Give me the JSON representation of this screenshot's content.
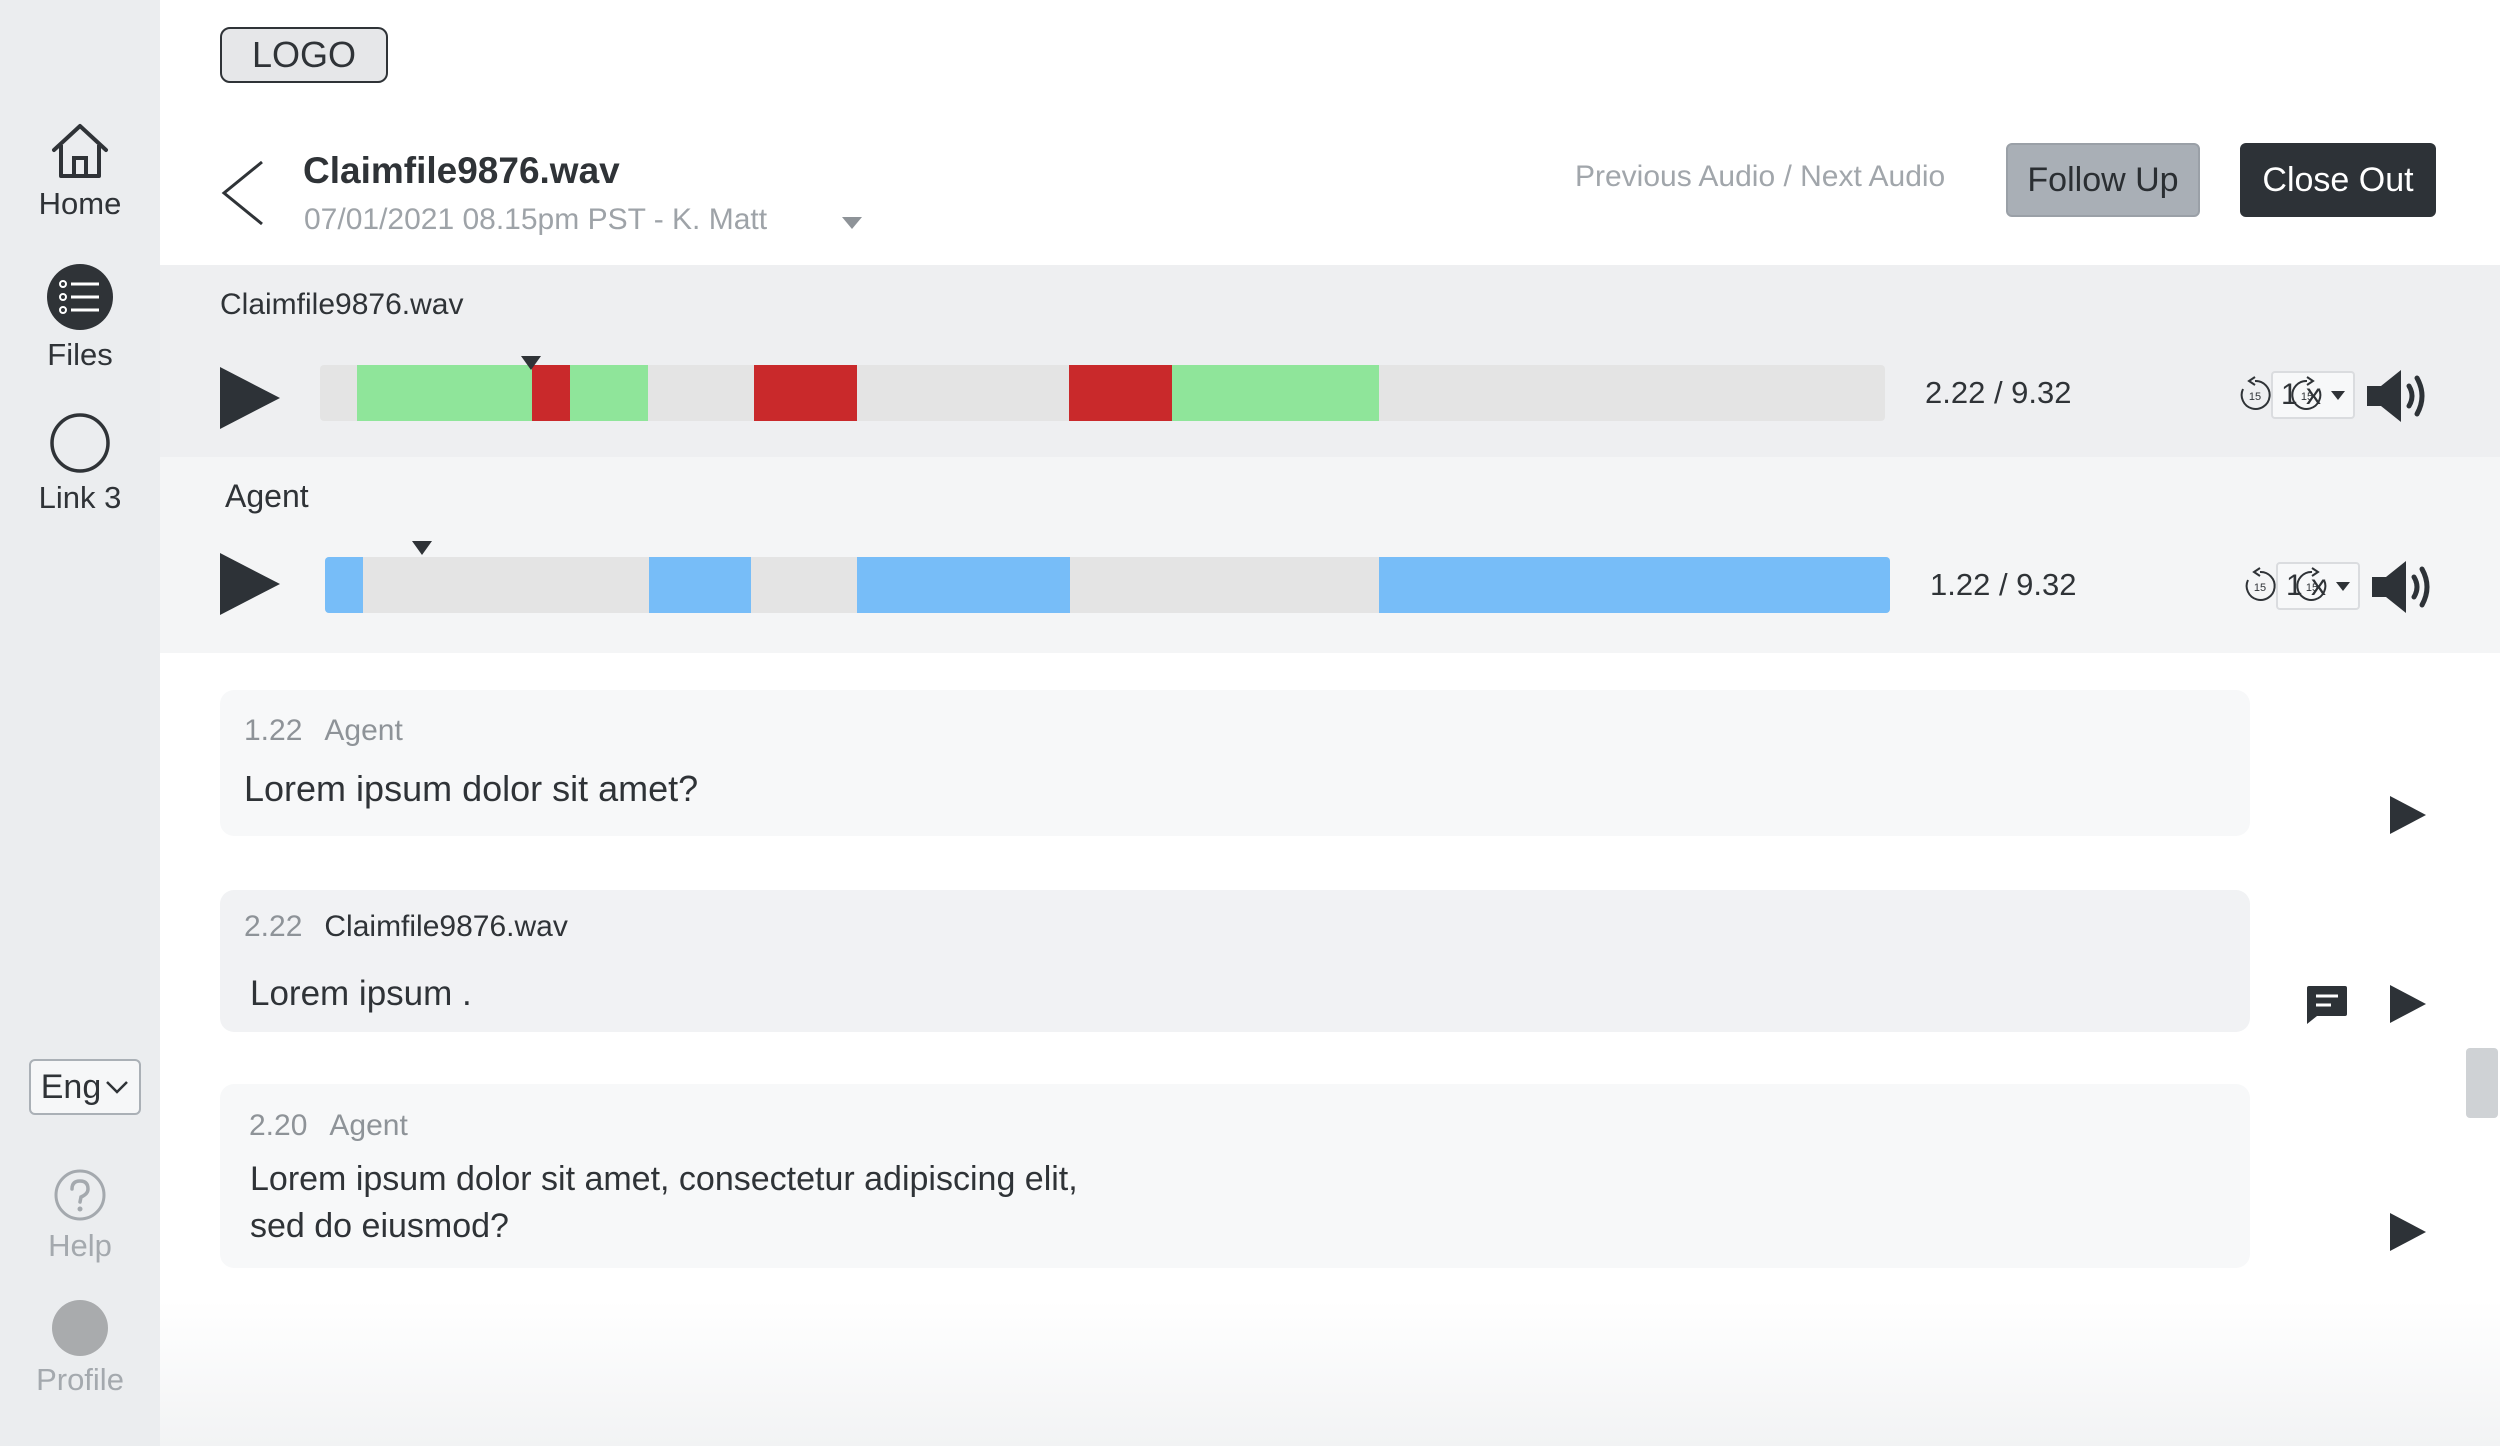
{
  "sidebar": {
    "items": [
      {
        "label": "Home",
        "icon": "home-icon"
      },
      {
        "label": "Files",
        "icon": "list-icon"
      },
      {
        "label": "Link 3",
        "icon": "circle-icon"
      }
    ],
    "language": "Eng",
    "help_label": "Help",
    "profile_label": "Profile"
  },
  "header": {
    "logo": "LOGO",
    "file_title": "Claimfile9876.wav",
    "file_meta": "07/01/2021  08.15pm PST - K. Matt",
    "audio_nav": "Previous Audio / Next Audio",
    "follow_up": "Follow Up",
    "close_out": "Close Out"
  },
  "players": [
    {
      "label": "Claimfile9876.wav",
      "time": "2.22 / 9.32",
      "speed": "1 x",
      "progress_fraction": 0.133
    },
    {
      "label": "Agent",
      "time": "1.22 / 9.32",
      "speed": "1 x",
      "progress_fraction": 0.056
    }
  ],
  "transcript": [
    {
      "time": "1.22",
      "speaker": "Agent",
      "text": "Lorem ipsum dolor sit amet?"
    },
    {
      "time": "2.22",
      "speaker": "Claimfile9876.wav",
      "text": "Lorem ipsum ."
    },
    {
      "time": "2.20",
      "speaker": "Agent",
      "text_line1": "Lorem ipsum dolor sit amet, consectetur adipiscing elit,",
      "text_line2": "sed do eiusmod?"
    }
  ],
  "colors": {
    "positive": "#8fe59a",
    "negative": "#c9292b",
    "agent": "#77bdf8",
    "track": "#e4e4e4",
    "dark": "#2d3237"
  }
}
